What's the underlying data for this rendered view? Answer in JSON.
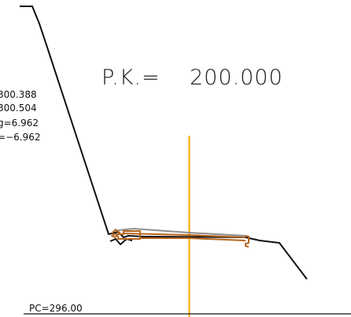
{
  "section": {
    "pk_label": "P.K.=",
    "pk_value": "200.000"
  },
  "info_lines": [
    "300.388",
    "300.504",
    "g=6.962",
    "=−6.962"
  ],
  "datum": {
    "label": "PC=296.00"
  },
  "colors": {
    "terrain": "#111111",
    "axis": "#f5a300",
    "road_surface": "#8e8e8e",
    "road_structure": "#b5651d"
  }
}
